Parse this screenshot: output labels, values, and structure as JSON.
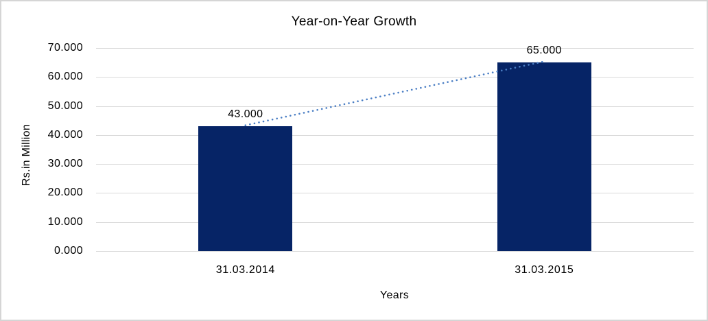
{
  "chart_data": {
    "type": "bar",
    "title": "Year-on-Year Growth",
    "xlabel": "Years",
    "ylabel": "Rs.in Million",
    "categories": [
      "31.03.2014",
      "31.03.2015"
    ],
    "values": [
      43.0,
      65.0
    ],
    "data_labels": [
      "43.000",
      "65.000"
    ],
    "ylim": [
      0,
      70
    ],
    "y_ticks": [
      {
        "value": 70,
        "label": "70.000"
      },
      {
        "value": 60,
        "label": "60.000"
      },
      {
        "value": 50,
        "label": "50.000"
      },
      {
        "value": 40,
        "label": "40.000"
      },
      {
        "value": 30,
        "label": "30.000"
      },
      {
        "value": 20,
        "label": "20.000"
      },
      {
        "value": 10,
        "label": "10.000"
      },
      {
        "value": 0,
        "label": "0.000"
      }
    ],
    "grid": "horizontal",
    "legend": "none",
    "trendline": {
      "style": "dotted",
      "connects": [
        "31.03.2014",
        "31.03.2015"
      ]
    },
    "colors": {
      "bar": "#062466",
      "trendline": "#4a7ec4",
      "gridline": "#d9d9d9",
      "text": "#000000",
      "frame_border": "#d5d5d5",
      "background": "#ffffff"
    }
  }
}
